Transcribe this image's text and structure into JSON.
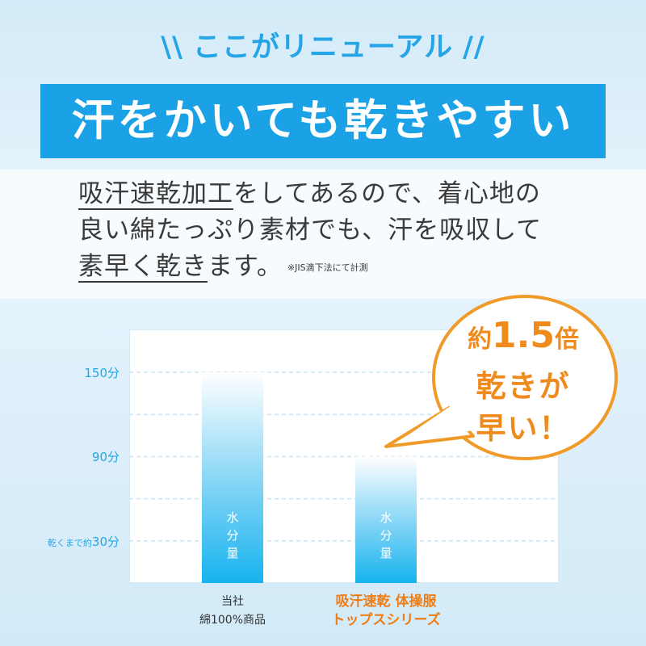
{
  "header": {
    "renewal_label": "ここがリニューアル",
    "slash": "\\\\",
    "slash_right": "//",
    "headline": "汗をかいても乾きやすい"
  },
  "body": {
    "line1_underlined": "吸汗速乾加工",
    "line1_rest": "をしてあるので、着心地の",
    "line2": "良い綿たっぷり素材でも、汗を吸収して",
    "line3_underlined": "素早く乾き",
    "line3_rest": "ます。",
    "note": "※JIS滴下法にて計測"
  },
  "callout": {
    "prefix": "約",
    "value": "1.5",
    "suffix": "倍",
    "line2": "乾きが",
    "line3": "早い！"
  },
  "colors": {
    "accent_blue": "#1aa1e6",
    "accent_orange": "#ef8a1c",
    "bar_top": "#ffffff",
    "bar_bottom": "#16b3ee"
  },
  "chart_data": {
    "type": "bar",
    "categories": [
      "当社\n綿100%商品",
      "吸汗速乾 体操服\nトップスシリーズ"
    ],
    "series": [
      {
        "values": [
          150,
          90
        ]
      }
    ],
    "ylim": [
      0,
      180
    ],
    "yticks": [
      30,
      90,
      150
    ],
    "ytick_labels": [
      "30分",
      "90分",
      "150分"
    ],
    "ytick_30_prefix": "乾くまで約",
    "bar_inner_label": "水分量",
    "grid": true
  }
}
